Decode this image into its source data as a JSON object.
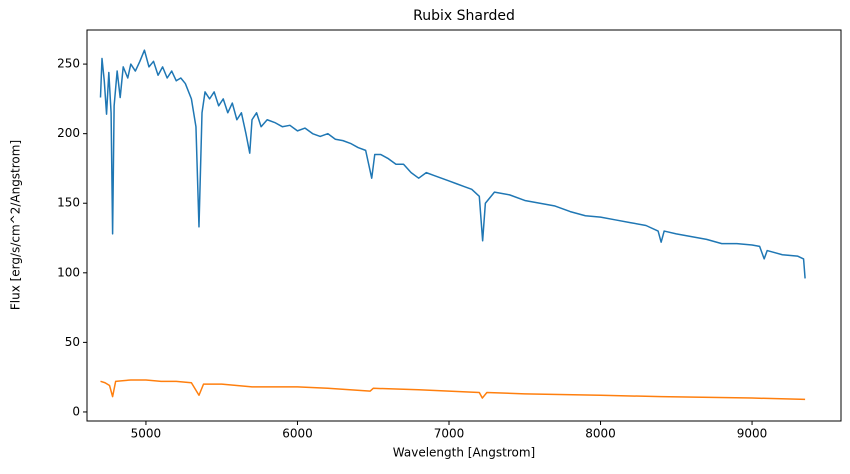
{
  "chart_data": {
    "type": "line",
    "title": "Rubix Sharded",
    "xlabel": "Wavelength [Angstrom]",
    "ylabel": "Flux [erg/s/cm^2/Angstrom]",
    "xlim": [
      4611,
      9587
    ],
    "ylim": [
      -6.5,
      274.5
    ],
    "xticks": [
      5000,
      6000,
      7000,
      8000,
      9000
    ],
    "yticks": [
      0,
      50,
      100,
      150,
      200,
      250
    ],
    "grid": false,
    "series": [
      {
        "color": "#1f77b4",
        "x": [
          4700,
          4710,
          4725,
          4740,
          4755,
          4770,
          4780,
          4790,
          4810,
          4830,
          4850,
          4880,
          4900,
          4930,
          4960,
          4990,
          5020,
          5050,
          5080,
          5110,
          5140,
          5170,
          5200,
          5230,
          5260,
          5300,
          5330,
          5350,
          5370,
          5390,
          5420,
          5450,
          5480,
          5510,
          5540,
          5570,
          5600,
          5630,
          5660,
          5685,
          5700,
          5730,
          5760,
          5800,
          5850,
          5900,
          5950,
          6000,
          6050,
          6100,
          6150,
          6200,
          6250,
          6300,
          6350,
          6400,
          6450,
          6490,
          6510,
          6550,
          6600,
          6650,
          6700,
          6750,
          6800,
          6850,
          6900,
          6950,
          7000,
          7050,
          7100,
          7150,
          7200,
          7222,
          7240,
          7300,
          7400,
          7500,
          7600,
          7700,
          7800,
          7900,
          8000,
          8100,
          8200,
          8300,
          8380,
          8400,
          8420,
          8500,
          8600,
          8700,
          8800,
          8900,
          9000,
          9050,
          9080,
          9100,
          9200,
          9300,
          9340,
          9350
        ],
        "values": [
          226,
          254,
          238,
          214,
          244,
          215,
          128,
          220,
          245,
          226,
          248,
          240,
          250,
          245,
          252,
          260,
          248,
          252,
          242,
          248,
          240,
          245,
          238,
          240,
          236,
          225,
          205,
          133,
          215,
          230,
          225,
          230,
          220,
          225,
          215,
          222,
          210,
          215,
          200,
          186,
          210,
          215,
          205,
          210,
          208,
          205,
          206,
          202,
          204,
          200,
          198,
          200,
          196,
          195,
          193,
          190,
          188,
          168,
          185,
          185,
          182,
          178,
          178,
          172,
          168,
          172,
          170,
          168,
          166,
          164,
          162,
          160,
          155,
          123,
          150,
          158,
          156,
          152,
          150,
          148,
          144,
          141,
          140,
          138,
          136,
          134,
          130,
          122,
          130,
          128,
          126,
          124,
          121,
          121,
          120,
          119,
          110,
          116,
          113,
          112,
          110,
          96
        ]
      },
      {
        "color": "#ff7f0e",
        "x": [
          4700,
          4730,
          4760,
          4780,
          4800,
          4900,
          5000,
          5100,
          5200,
          5300,
          5350,
          5380,
          5500,
          5600,
          5700,
          6000,
          6200,
          6480,
          6500,
          6800,
          7000,
          7200,
          7220,
          7250,
          7500,
          8000,
          8400,
          9000,
          9350
        ],
        "values": [
          22,
          21,
          19,
          11,
          22,
          23,
          23,
          22,
          22,
          21,
          12,
          20,
          20,
          19,
          18,
          18,
          17,
          15,
          17,
          16,
          15,
          14,
          10,
          14,
          13,
          12,
          11,
          10,
          9
        ]
      }
    ]
  }
}
